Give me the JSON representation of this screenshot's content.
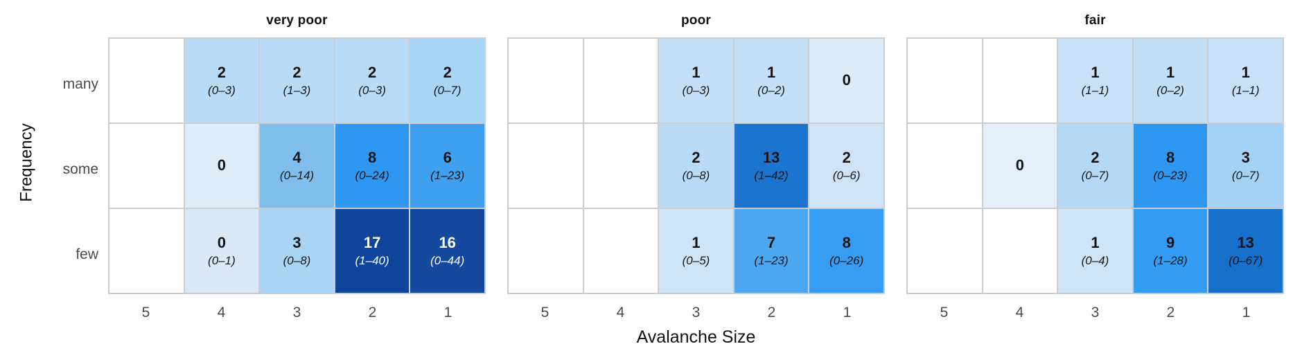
{
  "figure": {
    "y_axis_title": "Frequency",
    "x_axis_title": "Avalanche Size",
    "y_tick_labels": [
      "many",
      "some",
      "few"
    ],
    "x_tick_labels": [
      "5",
      "4",
      "3",
      "2",
      "1"
    ]
  },
  "chart_data": {
    "type": "heatmap",
    "xlabel": "Avalanche Size",
    "ylabel": "Frequency",
    "x_categories": [
      "5",
      "4",
      "3",
      "2",
      "1"
    ],
    "y_categories": [
      "many",
      "some",
      "few"
    ],
    "legend": "none",
    "grid": true,
    "cell_text_format": "count (bold) over 90% interval (italic)",
    "facets": [
      {
        "title": "very poor",
        "rows": [
          {
            "y": "many",
            "cells": [
              null,
              {
                "count": "2",
                "range": "(0–3)",
                "bg": "#badbf6",
                "fg": "#141414"
              },
              {
                "count": "2",
                "range": "(1–3)",
                "bg": "#badbf6",
                "fg": "#141414"
              },
              {
                "count": "2",
                "range": "(0–3)",
                "bg": "#badbf6",
                "fg": "#141414"
              },
              {
                "count": "2",
                "range": "(0–7)",
                "bg": "#a9d5f4",
                "fg": "#141414"
              }
            ]
          },
          {
            "y": "some",
            "cells": [
              null,
              {
                "count": "0",
                "range": null,
                "bg": "#ddecf9",
                "fg": "#141414"
              },
              {
                "count": "4",
                "range": "(0–14)",
                "bg": "#7fbdec",
                "fg": "#141414"
              },
              {
                "count": "8",
                "range": "(0–24)",
                "bg": "#2e97f1",
                "fg": "#141414"
              },
              {
                "count": "6",
                "range": "(1–23)",
                "bg": "#3fa0f0",
                "fg": "#141414"
              }
            ]
          },
          {
            "y": "few",
            "cells": [
              null,
              {
                "count": "0",
                "range": "(0–1)",
                "bg": "#d9e9f8",
                "fg": "#141414"
              },
              {
                "count": "3",
                "range": "(0–8)",
                "bg": "#a9d4f3",
                "fg": "#141414"
              },
              {
                "count": "17",
                "range": "(1–40)",
                "bg": "#0e459b",
                "fg": "#ffffff"
              },
              {
                "count": "16",
                "range": "(0–44)",
                "bg": "#15499e",
                "fg": "#ffffff"
              }
            ]
          }
        ]
      },
      {
        "title": "poor",
        "rows": [
          {
            "y": "many",
            "cells": [
              null,
              null,
              {
                "count": "1",
                "range": "(0–3)",
                "bg": "#c5dff6",
                "fg": "#141414"
              },
              {
                "count": "1",
                "range": "(0–2)",
                "bg": "#c5dff6",
                "fg": "#141414"
              },
              {
                "count": "0",
                "range": null,
                "bg": "#dcebf8",
                "fg": "#141414"
              }
            ]
          },
          {
            "y": "some",
            "cells": [
              null,
              null,
              {
                "count": "2",
                "range": "(0–8)",
                "bg": "#badbf6",
                "fg": "#141414"
              },
              {
                "count": "13",
                "range": "(1–42)",
                "bg": "#1b74d0",
                "fg": "#141414"
              },
              {
                "count": "2",
                "range": "(0–6)",
                "bg": "#cfe3f6",
                "fg": "#141414"
              }
            ]
          },
          {
            "y": "few",
            "cells": [
              null,
              null,
              {
                "count": "1",
                "range": "(0–5)",
                "bg": "#cde4f7",
                "fg": "#141414"
              },
              {
                "count": "7",
                "range": "(1–23)",
                "bg": "#4da7f0",
                "fg": "#141414"
              },
              {
                "count": "8",
                "range": "(0–26)",
                "bg": "#389df2",
                "fg": "#141414"
              }
            ]
          }
        ]
      },
      {
        "title": "fair",
        "rows": [
          {
            "y": "many",
            "cells": [
              null,
              null,
              {
                "count": "1",
                "range": "(1–1)",
                "bg": "#c8e1f7",
                "fg": "#141414"
              },
              {
                "count": "1",
                "range": "(0–2)",
                "bg": "#c3dff6",
                "fg": "#141414"
              },
              {
                "count": "1",
                "range": "(1–1)",
                "bg": "#c8e1f7",
                "fg": "#141414"
              }
            ]
          },
          {
            "y": "some",
            "cells": [
              null,
              {
                "count": "0",
                "range": null,
                "bg": "#e2eef9",
                "fg": "#141414"
              },
              {
                "count": "2",
                "range": "(0–7)",
                "bg": "#b5d9f5",
                "fg": "#141414"
              },
              {
                "count": "8",
                "range": "(0–23)",
                "bg": "#2e97f1",
                "fg": "#141414"
              },
              {
                "count": "3",
                "range": "(0–7)",
                "bg": "#a3d2f4",
                "fg": "#141414"
              }
            ]
          },
          {
            "y": "few",
            "cells": [
              null,
              null,
              {
                "count": "1",
                "range": "(0–4)",
                "bg": "#cde4f7",
                "fg": "#141414"
              },
              {
                "count": "9",
                "range": "(1–28)",
                "bg": "#339cf2",
                "fg": "#141414"
              },
              {
                "count": "13",
                "range": "(0–67)",
                "bg": "#1770cb",
                "fg": "#141414"
              }
            ]
          }
        ]
      }
    ]
  }
}
